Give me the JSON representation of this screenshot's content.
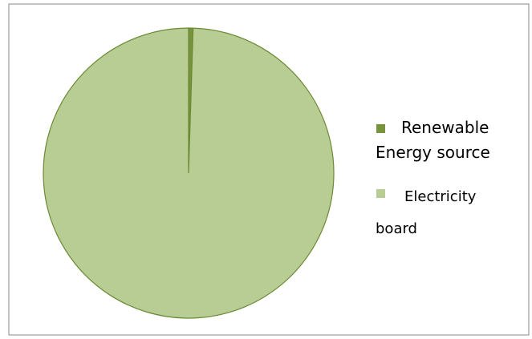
{
  "chart_data": {
    "type": "pie",
    "categories": [
      "Renewable Energy source",
      "Electricity board"
    ],
    "values": [
      0.5,
      99.5
    ],
    "colors": [
      "#77933c",
      "#b7cd93"
    ],
    "legend": "right"
  }
}
